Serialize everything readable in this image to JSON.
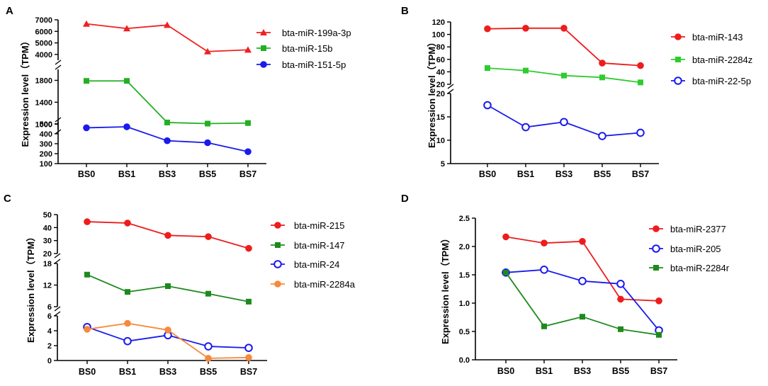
{
  "figure": {
    "categories": [
      "BS0",
      "BS1",
      "BS3",
      "BS5",
      "BS7"
    ],
    "ylabel": "Expression level（TPM）"
  },
  "chart_data": [
    {
      "panel": "A",
      "type": "line",
      "ylabel": "Expression level（TPM）",
      "categories": [
        "BS0",
        "BS1",
        "BS3",
        "BS5",
        "BS7"
      ],
      "segments": [
        {
          "ylim": [
            3500,
            7000
          ],
          "ticks": [
            4000,
            5000,
            6000,
            7000
          ]
        },
        {
          "ylim": [
            900,
            2000
          ],
          "ticks": [
            1000,
            1400,
            1800
          ]
        },
        {
          "ylim": [
            100,
            520
          ],
          "ticks": [
            100,
            200,
            300,
            400,
            500
          ]
        }
      ],
      "series": [
        {
          "name": "bta-miR-199a-3p",
          "color": "#f02020",
          "marker": "triangle",
          "values": [
            6650,
            6250,
            6550,
            4250,
            4400
          ]
        },
        {
          "name": "bta-miR-15b",
          "color": "#22b022",
          "marker": "square",
          "values": [
            1790,
            1790,
            1030,
            1010,
            1020
          ]
        },
        {
          "name": "bta-miR-151-5p",
          "color": "#1a1aee",
          "marker": "circle",
          "values": [
            460,
            470,
            330,
            310,
            220
          ]
        }
      ]
    },
    {
      "panel": "B",
      "type": "line",
      "ylabel": "Expression level（TPM）",
      "categories": [
        "BS0",
        "BS1",
        "BS3",
        "BS5",
        "BS7"
      ],
      "segments": [
        {
          "ylim": [
            20,
            120
          ],
          "ticks": [
            20,
            40,
            60,
            80,
            100,
            120
          ]
        },
        {
          "ylim": [
            5,
            20
          ],
          "ticks": [
            5,
            10,
            15,
            20
          ]
        }
      ],
      "series": [
        {
          "name": "bta-miR-143",
          "color": "#ee1c1c",
          "marker": "circle",
          "values": [
            109,
            110,
            110,
            54,
            50
          ]
        },
        {
          "name": "bta-miR-2284z",
          "color": "#2ecc2e",
          "marker": "square",
          "values": [
            46,
            42,
            34,
            31,
            23
          ]
        },
        {
          "name": "bta-miR-22-5p",
          "color": "#1a1aee",
          "marker": "open-circle",
          "values": [
            17.5,
            12.8,
            13.9,
            10.9,
            11.6
          ]
        }
      ]
    },
    {
      "panel": "C",
      "type": "line",
      "ylabel": "Expression level（TPM）",
      "categories": [
        "BS0",
        "BS1",
        "BS3",
        "BS5",
        "BS7"
      ],
      "segments": [
        {
          "ylim": [
            20,
            50
          ],
          "ticks": [
            20,
            30,
            40,
            50
          ]
        },
        {
          "ylim": [
            6,
            18
          ],
          "ticks": [
            6,
            12,
            18
          ]
        },
        {
          "ylim": [
            0,
            6
          ],
          "ticks": [
            0,
            2,
            4,
            6
          ]
        }
      ],
      "series": [
        {
          "name": "bta-miR-215",
          "color": "#ee1c1c",
          "marker": "circle",
          "values": [
            44.5,
            43.5,
            34,
            33,
            24
          ]
        },
        {
          "name": "bta-miR-147",
          "color": "#1e8a1e",
          "marker": "square",
          "values": [
            14.9,
            10.1,
            11.7,
            9.6,
            7.4
          ]
        },
        {
          "name": "bta-miR-24",
          "color": "#1a1aee",
          "marker": "open-circle",
          "values": [
            4.5,
            2.6,
            3.4,
            1.9,
            1.7
          ]
        },
        {
          "name": "bta-miR-2284a",
          "color": "#f7893a",
          "marker": "circle",
          "values": [
            4.2,
            5.0,
            4.1,
            0.3,
            0.4
          ]
        }
      ]
    },
    {
      "panel": "D",
      "type": "line",
      "ylabel": "Expression level（TPM）",
      "categories": [
        "BS0",
        "BS1",
        "BS3",
        "BS5",
        "BS7"
      ],
      "segments": [
        {
          "ylim": [
            0,
            2.5
          ],
          "ticks": [
            0.0,
            0.5,
            1.0,
            1.5,
            2.0,
            2.5
          ]
        }
      ],
      "series": [
        {
          "name": "bta-miR-2377",
          "color": "#ee1c1c",
          "marker": "circle",
          "values": [
            2.17,
            2.06,
            2.09,
            1.07,
            1.04
          ]
        },
        {
          "name": "bta-miR-205",
          "color": "#1a1aee",
          "marker": "open-circle",
          "values": [
            1.54,
            1.59,
            1.39,
            1.34,
            0.52
          ]
        },
        {
          "name": "bta-miR-2284r",
          "color": "#1e8a1e",
          "marker": "square",
          "values": [
            1.54,
            0.59,
            0.76,
            0.54,
            0.44
          ]
        }
      ]
    }
  ]
}
